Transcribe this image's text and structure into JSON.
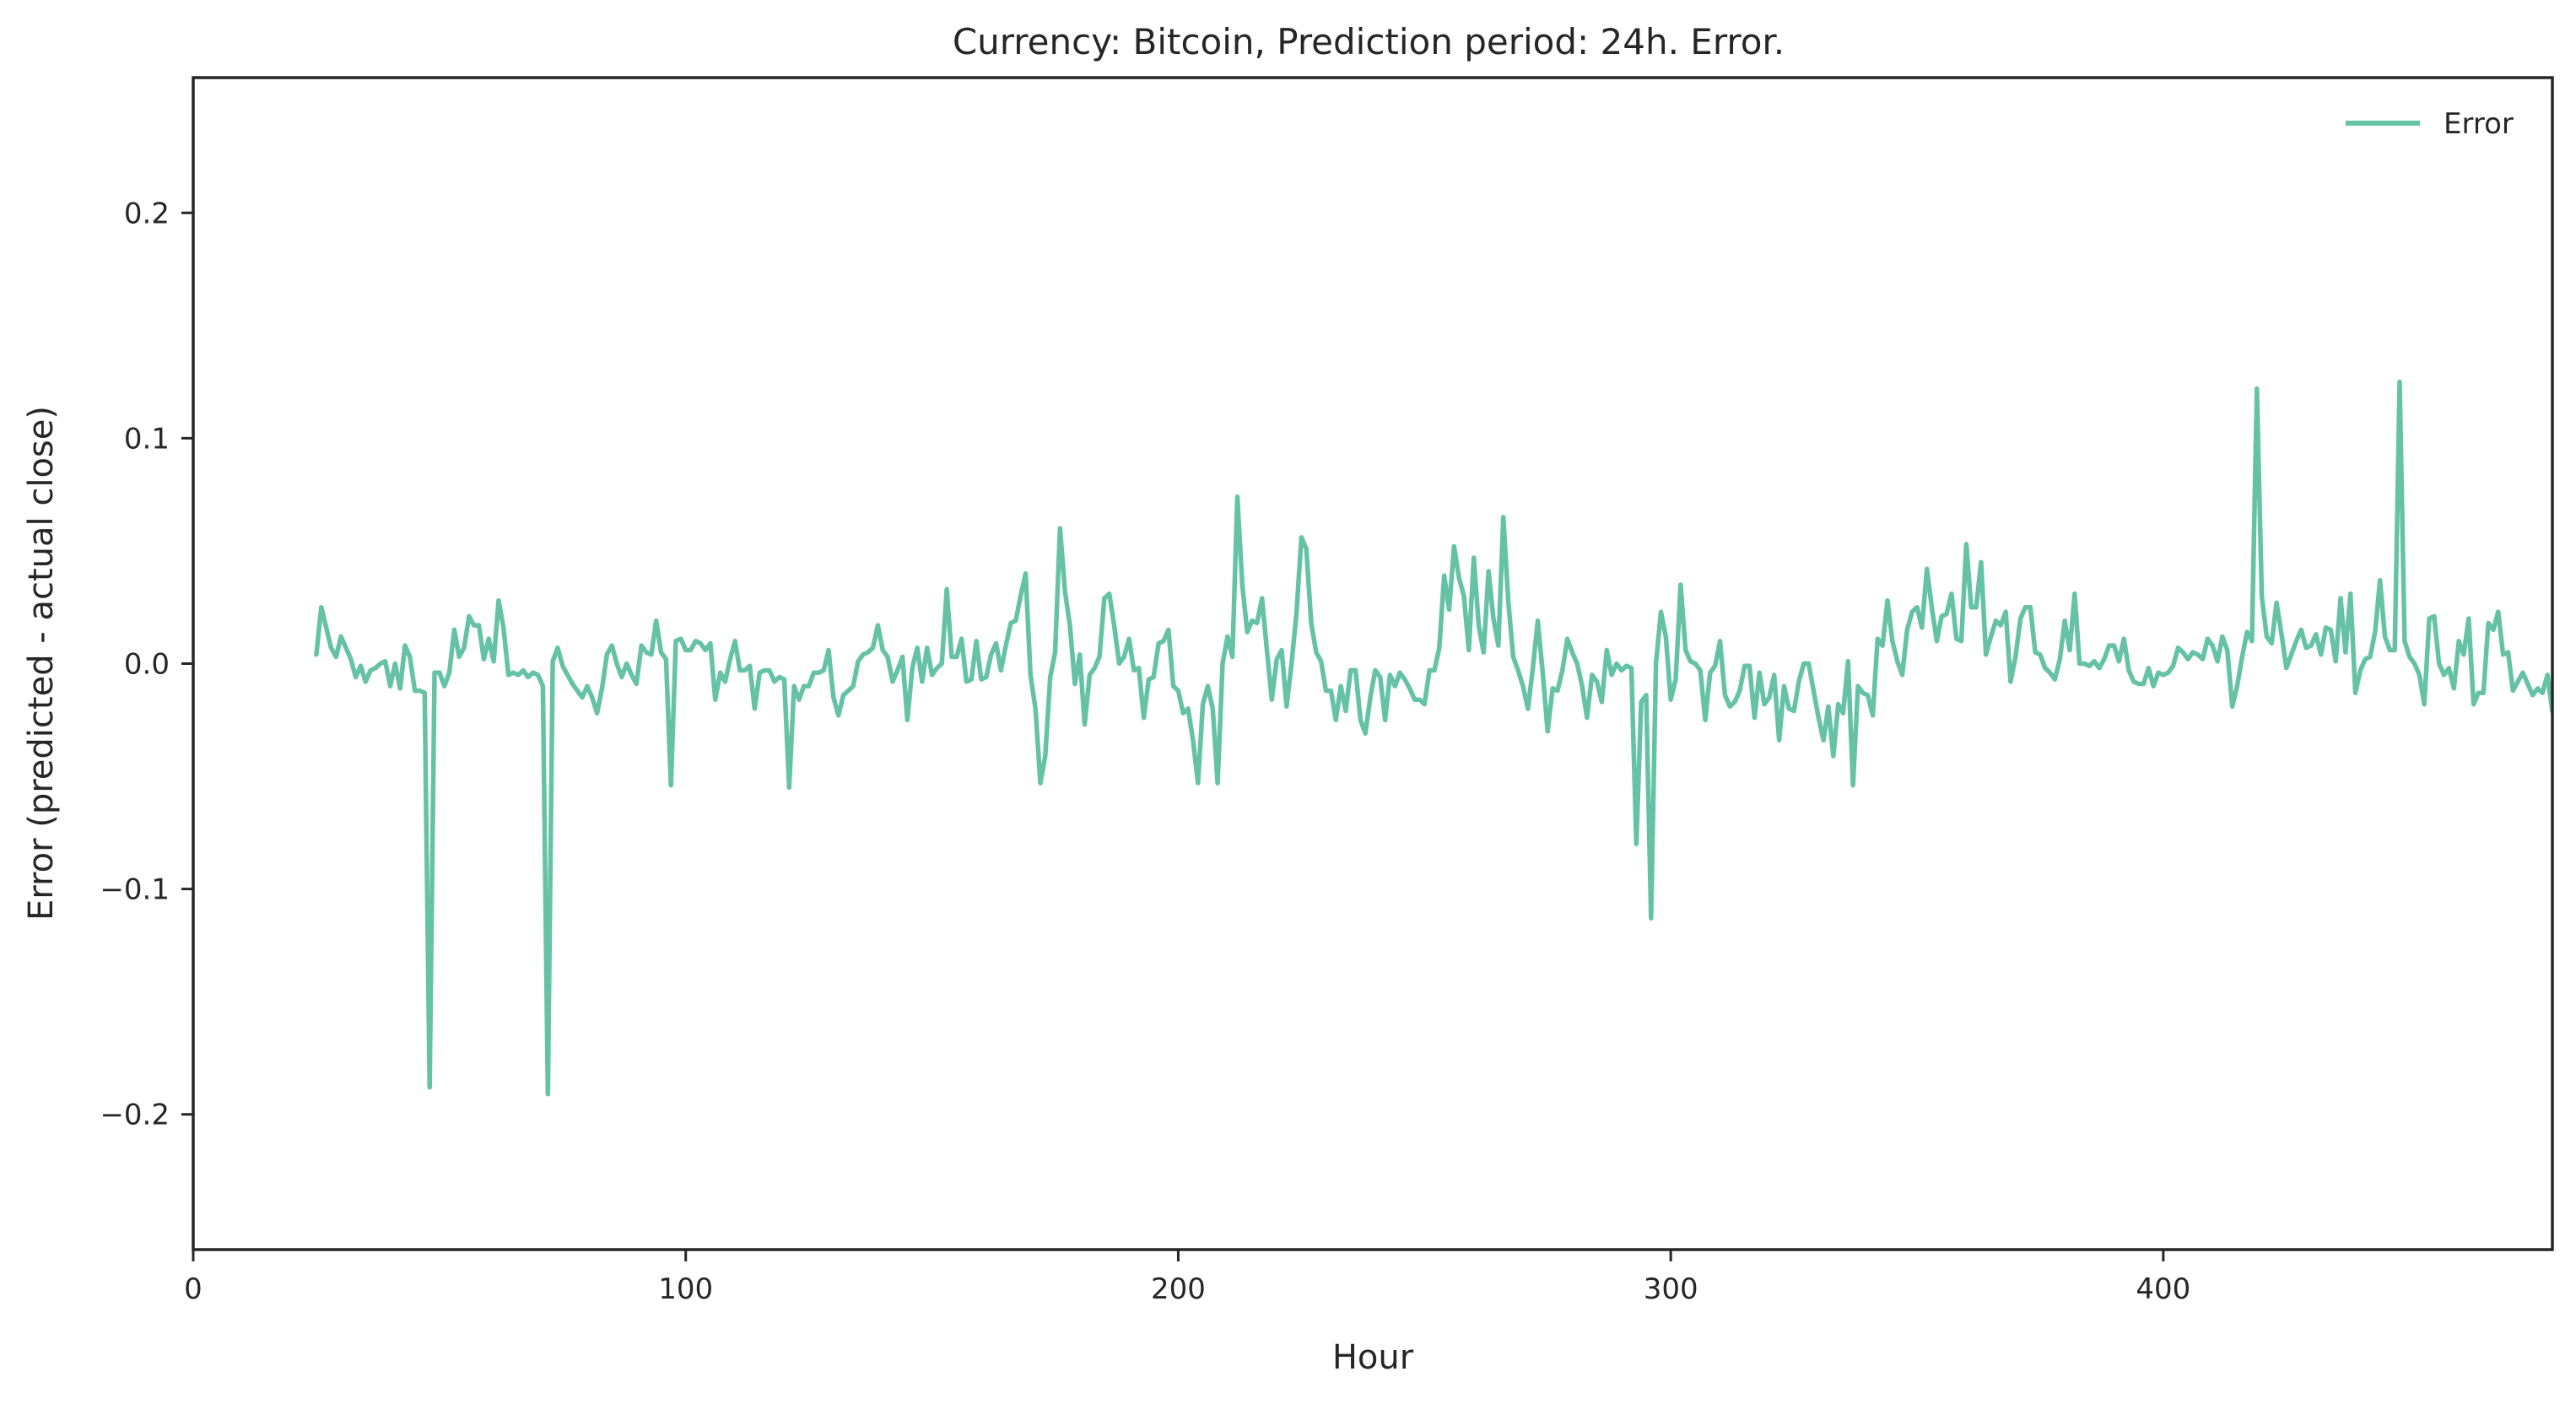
{
  "chart_data": {
    "type": "line",
    "title": "Currency: Bitcoin, Prediction period: 24h. Error.",
    "xlabel": "Hour",
    "ylabel": "Error (predicted - actual close)",
    "xlim": [
      0,
      479
    ],
    "ylim": [
      -0.26,
      0.26
    ],
    "x_ticks": [
      0,
      100,
      200,
      300,
      400
    ],
    "x_tick_labels": [
      "0",
      "100",
      "200",
      "300",
      "400"
    ],
    "y_ticks": [
      -0.2,
      -0.1,
      0.0,
      0.1,
      0.2
    ],
    "y_tick_labels": [
      "−0.2",
      "−0.1",
      "0.0",
      "0.1",
      "0.2"
    ],
    "grid": false,
    "legend": {
      "position": "top-right"
    },
    "series": [
      {
        "name": "Error",
        "color": "#66c2a5",
        "x_start": 25,
        "x_step": 1,
        "values": [
          0.004,
          0.025,
          0.016,
          0.007,
          0.003,
          0.012,
          0.007,
          0.002,
          -0.006,
          -0.001,
          -0.008,
          -0.003,
          -0.002,
          0.0,
          0.001,
          -0.01,
          0.0,
          -0.011,
          0.008,
          0.003,
          -0.012,
          -0.012,
          -0.013,
          -0.188,
          -0.004,
          -0.004,
          -0.01,
          -0.004,
          0.015,
          0.003,
          0.007,
          0.021,
          0.017,
          0.017,
          0.002,
          0.011,
          0.001,
          0.028,
          0.016,
          -0.005,
          -0.004,
          -0.005,
          -0.003,
          -0.006,
          -0.004,
          -0.005,
          -0.01,
          -0.191,
          0.001,
          0.007,
          -0.001,
          -0.005,
          -0.009,
          -0.012,
          -0.015,
          -0.01,
          -0.015,
          -0.022,
          -0.011,
          0.004,
          0.008,
          0.0,
          -0.006,
          0.0,
          -0.005,
          -0.009,
          0.008,
          0.005,
          0.004,
          0.019,
          0.005,
          0.002,
          -0.054,
          0.01,
          0.011,
          0.006,
          0.006,
          0.01,
          0.009,
          0.006,
          0.009,
          -0.016,
          -0.004,
          -0.008,
          0.002,
          0.01,
          -0.003,
          -0.003,
          -0.001,
          -0.02,
          -0.004,
          -0.003,
          -0.003,
          -0.008,
          -0.006,
          -0.007,
          -0.055,
          -0.01,
          -0.016,
          -0.01,
          -0.01,
          -0.004,
          -0.004,
          -0.003,
          0.006,
          -0.015,
          -0.023,
          -0.014,
          -0.012,
          -0.01,
          0.001,
          0.004,
          0.005,
          0.007,
          0.017,
          0.006,
          0.003,
          -0.008,
          -0.003,
          0.003,
          -0.025,
          -0.002,
          0.007,
          -0.008,
          0.007,
          -0.005,
          -0.002,
          0.0,
          0.033,
          0.003,
          0.003,
          0.011,
          -0.008,
          -0.007,
          0.01,
          -0.007,
          -0.006,
          0.004,
          0.009,
          -0.003,
          0.008,
          0.018,
          0.019,
          0.03,
          0.04,
          -0.005,
          -0.02,
          -0.053,
          -0.041,
          -0.006,
          0.005,
          0.06,
          0.032,
          0.017,
          -0.009,
          0.004,
          -0.027,
          -0.005,
          -0.002,
          0.003,
          0.029,
          0.031,
          0.017,
          0.0,
          0.003,
          0.011,
          -0.003,
          -0.002,
          -0.024,
          -0.007,
          -0.006,
          0.009,
          0.01,
          0.015,
          -0.01,
          -0.012,
          -0.022,
          -0.02,
          -0.034,
          -0.053,
          -0.018,
          -0.01,
          -0.02,
          -0.053,
          0.0,
          0.012,
          0.003,
          0.074,
          0.035,
          0.014,
          0.019,
          0.018,
          0.029,
          0.006,
          -0.016,
          0.002,
          0.006,
          -0.019,
          0.0,
          0.022,
          0.056,
          0.051,
          0.018,
          0.005,
          0.001,
          -0.012,
          -0.012,
          -0.025,
          -0.01,
          -0.021,
          -0.003,
          -0.003,
          -0.025,
          -0.031,
          -0.015,
          -0.003,
          -0.006,
          -0.025,
          -0.005,
          -0.01,
          -0.004,
          -0.007,
          -0.011,
          -0.016,
          -0.016,
          -0.018,
          -0.003,
          -0.003,
          0.007,
          0.039,
          0.024,
          0.052,
          0.038,
          0.03,
          0.006,
          0.047,
          0.017,
          0.005,
          0.041,
          0.02,
          0.008,
          0.065,
          0.028,
          0.003,
          -0.003,
          -0.01,
          -0.02,
          -0.002,
          0.019,
          -0.004,
          -0.03,
          -0.011,
          -0.012,
          -0.003,
          0.011,
          0.005,
          0.0,
          -0.01,
          -0.024,
          -0.005,
          -0.008,
          -0.017,
          0.006,
          -0.005,
          0.0,
          -0.003,
          -0.001,
          -0.002,
          -0.08,
          -0.017,
          -0.014,
          -0.113,
          0.0,
          0.023,
          0.012,
          -0.016,
          -0.007,
          0.035,
          0.006,
          0.001,
          0.0,
          -0.003,
          -0.025,
          -0.004,
          -0.001,
          0.01,
          -0.014,
          -0.019,
          -0.017,
          -0.012,
          -0.001,
          -0.001,
          -0.024,
          -0.004,
          -0.018,
          -0.015,
          -0.005,
          -0.034,
          -0.01,
          -0.02,
          -0.021,
          -0.008,
          0.0,
          0.0,
          -0.012,
          -0.024,
          -0.034,
          -0.019,
          -0.041,
          -0.018,
          -0.022,
          0.001,
          -0.054,
          -0.01,
          -0.013,
          -0.014,
          -0.023,
          0.011,
          0.008,
          0.028,
          0.01,
          0.001,
          -0.005,
          0.015,
          0.023,
          0.025,
          0.016,
          0.042,
          0.025,
          0.01,
          0.021,
          0.022,
          0.031,
          0.011,
          0.01,
          0.053,
          0.025,
          0.025,
          0.045,
          0.004,
          0.012,
          0.019,
          0.017,
          0.023,
          -0.008,
          0.003,
          0.02,
          0.025,
          0.025,
          0.005,
          0.004,
          -0.002,
          -0.004,
          -0.007,
          0.002,
          0.019,
          0.006,
          0.031,
          0.0,
          0.0,
          -0.001,
          0.001,
          -0.002,
          0.002,
          0.008,
          0.008,
          0.001,
          0.011,
          -0.003,
          -0.008,
          -0.009,
          -0.009,
          -0.002,
          -0.01,
          -0.004,
          -0.005,
          -0.004,
          -0.001,
          0.007,
          0.005,
          0.002,
          0.005,
          0.004,
          0.002,
          0.011,
          0.008,
          0.001,
          0.012,
          0.006,
          -0.019,
          -0.01,
          0.003,
          0.014,
          0.01,
          0.122,
          0.03,
          0.012,
          0.009,
          0.027,
          0.013,
          -0.002,
          0.004,
          0.01,
          0.015,
          0.007,
          0.008,
          0.013,
          0.004,
          0.016,
          0.015,
          0.001,
          0.029,
          0.005,
          0.031,
          -0.013,
          -0.003,
          0.002,
          0.003,
          0.014,
          0.037,
          0.012,
          0.006,
          0.006,
          0.125,
          0.01,
          0.003,
          0.0,
          -0.005,
          -0.018,
          0.02,
          0.021,
          0.0,
          -0.005,
          -0.002,
          -0.011,
          0.01,
          0.004,
          0.02,
          -0.018,
          -0.013,
          -0.013,
          0.018,
          0.015,
          0.023,
          0.004,
          0.005,
          -0.012,
          -0.008,
          -0.004,
          -0.009,
          -0.014,
          -0.011,
          -0.013,
          -0.005,
          -0.021,
          -0.026,
          0.004
        ]
      }
    ]
  }
}
